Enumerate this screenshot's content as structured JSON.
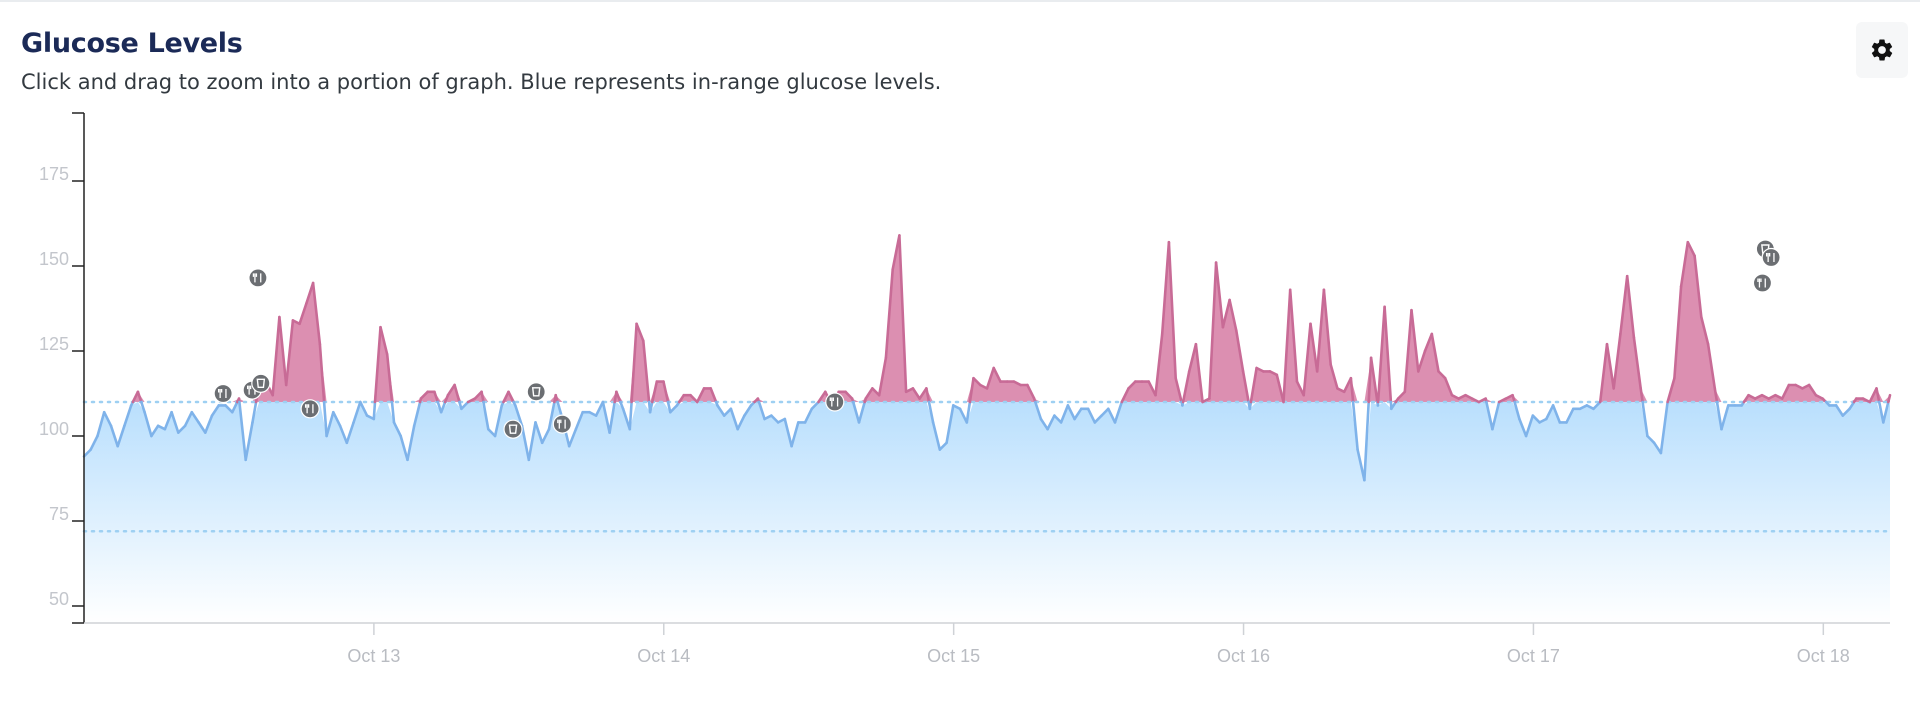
{
  "header": {
    "title": "Glucose Levels",
    "subtitle": "Click and drag to zoom into a portion of graph. Blue represents in-range glucose levels."
  },
  "settings_icon": "gear-icon",
  "colors": {
    "in_range_line": "#7fb3ea",
    "in_range_fill_top": "#b9dffd",
    "in_range_fill_bottom": "#ffffff",
    "high_fill": "#dc8fb1",
    "high_line": "#c86b96",
    "target_line": "#9ed0f2",
    "marker": "#6b6e72"
  },
  "chart_data": {
    "type": "area",
    "title": "Glucose Levels",
    "ylim": [
      45,
      195
    ],
    "y_ticks": [
      50,
      75,
      100,
      125,
      150,
      175
    ],
    "x_range_days": [
      12.0,
      18.23
    ],
    "x_ticks": [
      {
        "label": "Oct 13",
        "day": 13.0
      },
      {
        "label": "Oct 14",
        "day": 14.0
      },
      {
        "label": "Oct 15",
        "day": 15.0
      },
      {
        "label": "Oct 16",
        "day": 16.0
      },
      {
        "label": "Oct 17",
        "day": 17.0
      },
      {
        "label": "Oct 18",
        "day": 18.0
      }
    ],
    "target_range": {
      "high": 110,
      "low": 72
    },
    "series": [
      {
        "values": [
          94,
          96,
          100,
          107,
          103,
          97,
          103,
          109,
          113,
          107,
          100,
          103,
          102,
          107,
          101,
          103,
          107,
          104,
          101,
          106,
          109,
          109,
          107,
          111,
          93,
          104,
          115,
          116,
          112,
          135,
          115,
          134,
          133,
          139,
          145,
          127,
          100,
          107,
          103,
          98,
          104,
          110,
          106,
          105,
          132,
          124,
          104,
          100,
          93,
          103,
          111,
          113,
          113,
          107,
          112,
          115,
          108,
          110,
          111,
          113,
          102,
          100,
          109,
          113,
          109,
          103,
          93,
          104,
          98,
          102,
          112,
          105,
          97,
          102,
          107,
          107,
          106,
          110,
          101,
          113,
          108,
          102,
          133,
          128,
          107,
          116,
          116,
          107,
          109,
          112,
          112,
          110,
          114,
          114,
          109,
          106,
          108,
          102,
          106,
          109,
          111,
          105,
          106,
          104,
          105,
          97,
          104,
          104,
          108,
          110,
          113,
          109,
          113,
          113,
          111,
          104,
          111,
          114,
          112,
          123,
          149,
          159,
          113,
          114,
          111,
          114,
          104,
          96,
          98,
          109,
          108,
          104,
          117,
          115,
          114,
          120,
          116,
          116,
          116,
          115,
          115,
          111,
          105,
          102,
          106,
          104,
          109,
          105,
          108,
          108,
          104,
          106,
          108,
          104,
          110,
          114,
          116,
          116,
          116,
          112,
          130,
          157,
          117,
          109,
          119,
          127,
          110,
          111,
          151,
          132,
          140,
          131,
          119,
          108,
          120,
          119,
          119,
          118,
          110,
          143,
          116,
          112,
          133,
          119,
          143,
          121,
          114,
          113,
          117,
          96,
          87,
          123,
          109,
          138,
          108,
          111,
          113,
          137,
          119,
          125,
          130,
          119,
          117,
          112,
          111,
          112,
          111,
          110,
          111,
          102,
          110,
          111,
          112,
          105,
          100,
          106,
          104,
          105,
          109,
          104,
          104,
          108,
          108,
          109,
          108,
          110,
          127,
          114,
          130,
          147,
          129,
          114,
          100,
          98,
          95,
          110,
          117,
          144,
          157,
          153,
          135,
          127,
          114,
          102,
          109,
          109,
          109,
          112,
          111,
          112,
          111,
          112,
          111,
          115,
          115,
          114,
          115,
          112,
          111,
          109,
          109,
          106,
          108,
          111,
          111,
          110,
          114,
          104,
          112
        ]
      }
    ],
    "event_markers": [
      {
        "icon": "utensils",
        "day": 12.48,
        "value": 112.5
      },
      {
        "icon": "utensils",
        "day": 12.58,
        "value": 113.5
      },
      {
        "icon": "cup",
        "day": 12.61,
        "value": 115.5
      },
      {
        "icon": "utensils",
        "day": 12.6,
        "value": 146.5
      },
      {
        "icon": "utensils",
        "day": 12.78,
        "value": 108
      },
      {
        "icon": "cup",
        "day": 13.48,
        "value": 102
      },
      {
        "icon": "cup",
        "day": 13.56,
        "value": 113
      },
      {
        "icon": "utensils",
        "day": 13.65,
        "value": 103.5
      },
      {
        "icon": "utensils",
        "day": 14.59,
        "value": 110
      },
      {
        "icon": "cup",
        "day": 17.8,
        "value": 155
      },
      {
        "icon": "utensils",
        "day": 17.82,
        "value": 152.5
      },
      {
        "icon": "utensils",
        "day": 17.79,
        "value": 145
      }
    ]
  }
}
